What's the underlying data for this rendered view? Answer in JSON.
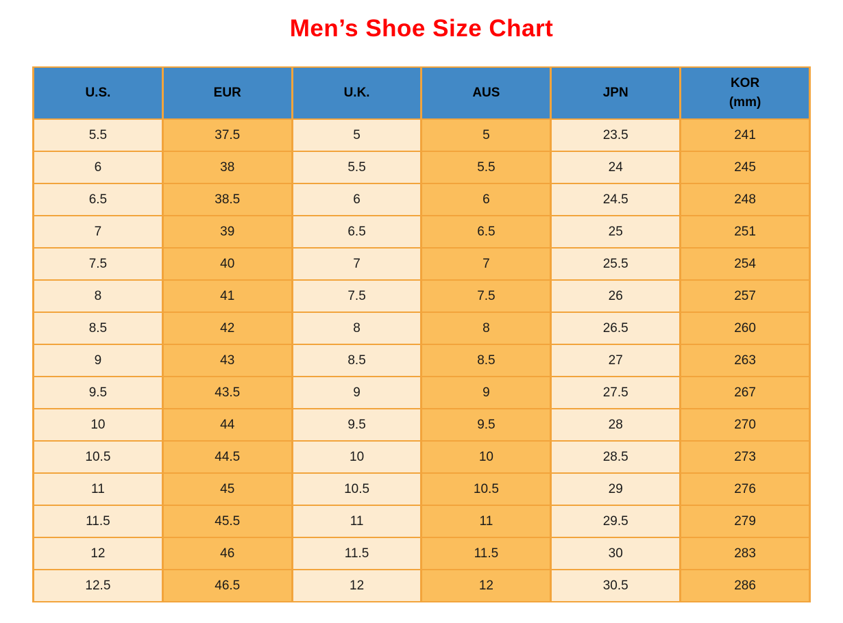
{
  "title": {
    "text": "Men’s Shoe Size Chart"
  },
  "colors": {
    "page_bg": "#ffffff",
    "title_color": "#ff0000",
    "header_bg": "#4289c6",
    "col_light": "#fdebd0",
    "col_orange": "#fbbe5c",
    "border_color": "#f2a43c",
    "text_color": "#1a1a1a"
  },
  "table": {
    "headers": [
      {
        "label": "U.S."
      },
      {
        "label": "EUR"
      },
      {
        "label": "U.K."
      },
      {
        "label": "AUS"
      },
      {
        "label": "JPN"
      },
      {
        "label": "KOR",
        "sub": "(mm)"
      }
    ]
  },
  "chart_data": {
    "type": "table",
    "title": "Men’s Shoe Size Chart",
    "columns": [
      "U.S.",
      "EUR",
      "U.K.",
      "AUS",
      "JPN",
      "KOR (mm)"
    ],
    "rows": [
      [
        "5.5",
        "37.5",
        "5",
        "5",
        "23.5",
        "241"
      ],
      [
        "6",
        "38",
        "5.5",
        "5.5",
        "24",
        "245"
      ],
      [
        "6.5",
        "38.5",
        "6",
        "6",
        "24.5",
        "248"
      ],
      [
        "7",
        "39",
        "6.5",
        "6.5",
        "25",
        "251"
      ],
      [
        "7.5",
        "40",
        "7",
        "7",
        "25.5",
        "254"
      ],
      [
        "8",
        "41",
        "7.5",
        "7.5",
        "26",
        "257"
      ],
      [
        "8.5",
        "42",
        "8",
        "8",
        "26.5",
        "260"
      ],
      [
        "9",
        "43",
        "8.5",
        "8.5",
        "27",
        "263"
      ],
      [
        "9.5",
        "43.5",
        "9",
        "9",
        "27.5",
        "267"
      ],
      [
        "10",
        "44",
        "9.5",
        "9.5",
        "28",
        "270"
      ],
      [
        "10.5",
        "44.5",
        "10",
        "10",
        "28.5",
        "273"
      ],
      [
        "11",
        "45",
        "10.5",
        "10.5",
        "29",
        "276"
      ],
      [
        "11.5",
        "45.5",
        "11",
        "11",
        "29.5",
        "279"
      ],
      [
        "12",
        "46",
        "11.5",
        "11.5",
        "30",
        "283"
      ],
      [
        "12.5",
        "46.5",
        "12",
        "12",
        "30.5",
        "286"
      ]
    ],
    "column_fill_pattern": [
      "light",
      "orange",
      "light",
      "orange",
      "light",
      "orange"
    ],
    "layout_hints": {
      "header_fill": "blue",
      "grid": "on",
      "grid_color": "orange",
      "title_position": "top-center"
    }
  }
}
